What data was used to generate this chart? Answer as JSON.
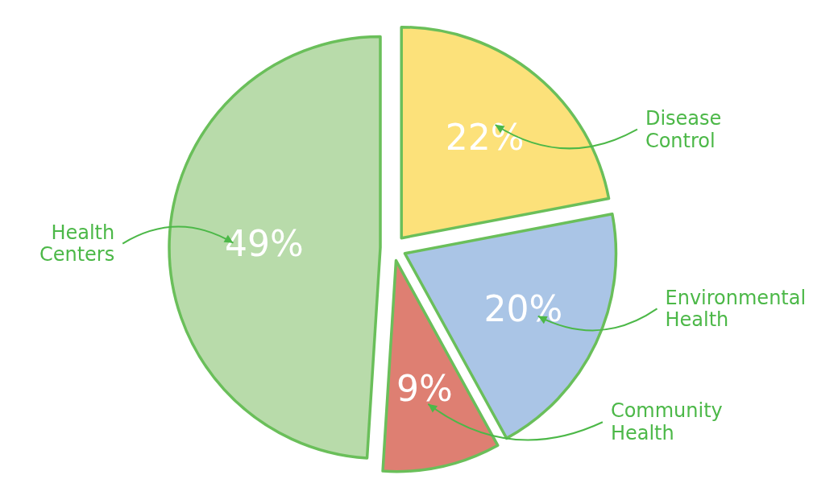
{
  "chart_data": {
    "type": "pie",
    "categories": [
      "Disease Control",
      "Environmental Health",
      "Community Health",
      "Health Centers"
    ],
    "values": [
      22,
      20,
      9,
      49
    ],
    "value_labels": [
      "22%",
      "20%",
      "9%",
      "49%"
    ],
    "colors": [
      "#fce17a",
      "#aac5e6",
      "#de7f72",
      "#b8dbaa"
    ]
  }
}
